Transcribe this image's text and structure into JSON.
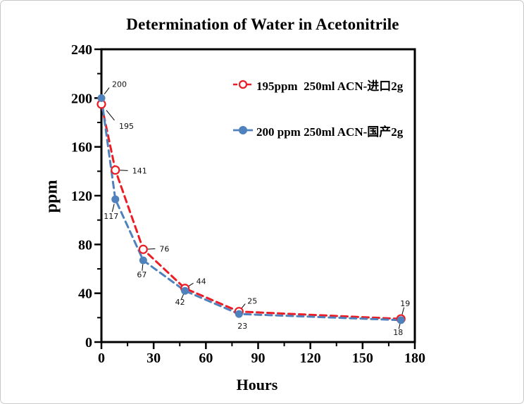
{
  "frame": {
    "background": "#ffffff",
    "border_color": "#c9c9c9"
  },
  "chart_data": {
    "type": "line",
    "title": "Determination of Water in Acetonitrile",
    "xlabel": "Hours",
    "ylabel": "ppm",
    "xlim": [
      0,
      180
    ],
    "ylim": [
      0,
      240
    ],
    "xticks": [
      0,
      30,
      60,
      90,
      120,
      150,
      180
    ],
    "yticks": [
      0,
      40,
      80,
      120,
      160,
      200,
      240
    ],
    "x_minor_step": 15,
    "y_minor_step": 20,
    "grid": false,
    "legend_position": "inside upper right",
    "axis_color": "#000000",
    "series": [
      {
        "name": "195ppm  250ml ACN-进口2g",
        "color": "#ec1c24",
        "line_style": "dashed",
        "marker": "open-circle",
        "points": [
          {
            "x": 0,
            "y": 195,
            "label": "195",
            "dx": 25,
            "dy": 31,
            "anchor": "start",
            "leader": true
          },
          {
            "x": 8,
            "y": 141,
            "label": "141",
            "dx": 24,
            "dy": 1,
            "anchor": "start",
            "leader": true
          },
          {
            "x": 24,
            "y": 76,
            "label": "76",
            "dx": 23,
            "dy": -1,
            "anchor": "start",
            "leader": true
          },
          {
            "x": 48,
            "y": 44,
            "label": "44",
            "dx": 16,
            "dy": -10,
            "anchor": "start",
            "leader": true
          },
          {
            "x": 79,
            "y": 25,
            "label": "25",
            "dx": 12,
            "dy": -15,
            "anchor": "start",
            "leader": true
          },
          {
            "x": 172,
            "y": 19,
            "label": "19",
            "dx": 6,
            "dy": -22,
            "anchor": "middle",
            "leader": true
          }
        ]
      },
      {
        "name": "200 ppm 250ml ACN-国产2g",
        "color": "#4f81bd",
        "line_style": "dashed",
        "marker": "filled-circle",
        "points": [
          {
            "x": 0,
            "y": 200,
            "label": "200",
            "dx": 15,
            "dy": -20,
            "anchor": "start",
            "leader": true
          },
          {
            "x": 8,
            "y": 117,
            "label": "117",
            "dx": -6,
            "dy": 24,
            "anchor": "middle",
            "leader": true
          },
          {
            "x": 24,
            "y": 67,
            "label": "67",
            "dx": -2,
            "dy": 20,
            "anchor": "middle",
            "leader": true
          },
          {
            "x": 48,
            "y": 42,
            "label": "42",
            "dx": -7,
            "dy": 16,
            "anchor": "middle",
            "leader": true
          },
          {
            "x": 79,
            "y": 23,
            "label": "23",
            "dx": 5,
            "dy": 17,
            "anchor": "middle",
            "leader": false
          },
          {
            "x": 172,
            "y": 18,
            "label": "18",
            "dx": -4,
            "dy": 17,
            "anchor": "middle",
            "leader": true
          }
        ]
      }
    ]
  }
}
